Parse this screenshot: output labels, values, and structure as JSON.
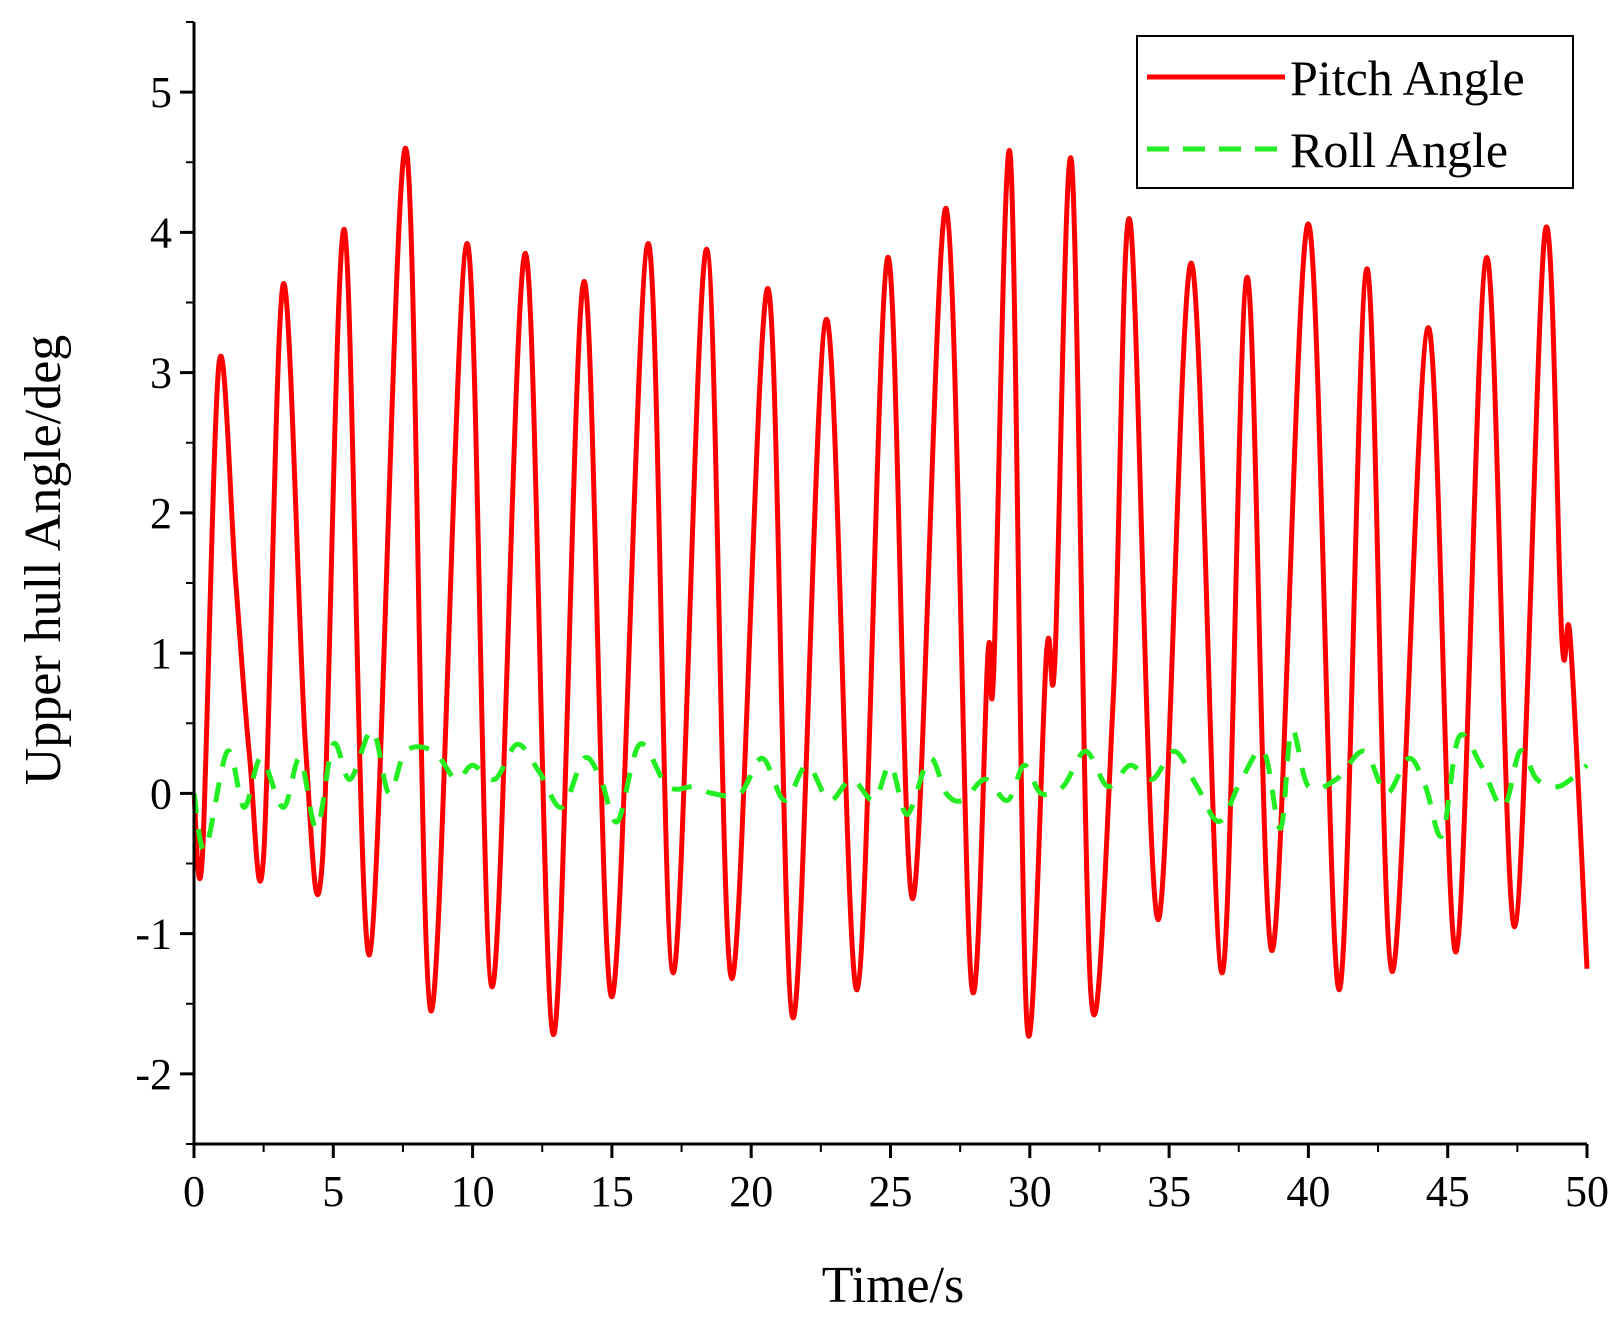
{
  "chart_data": {
    "type": "line",
    "title": "",
    "xlabel": "Time/s",
    "ylabel": "Upper hull Angle/deg",
    "xlim": [
      0,
      50
    ],
    "ylim": [
      -2.5,
      5.5
    ],
    "x_ticks": [
      0,
      5,
      10,
      15,
      20,
      25,
      30,
      35,
      40,
      45,
      50
    ],
    "x_tick_labels": [
      "0",
      "5",
      "10",
      "15",
      "20",
      "25",
      "30",
      "35",
      "40",
      "45",
      "50"
    ],
    "y_ticks": [
      -2,
      -1,
      0,
      1,
      2,
      3,
      4,
      5
    ],
    "y_tick_labels": [
      "-2",
      "-1",
      "0",
      "1",
      "2",
      "3",
      "4",
      "5"
    ],
    "legend_position": "top-right",
    "grid": false,
    "series": [
      {
        "name": "Pitch Angle",
        "color": "#ff0000",
        "style": "solid",
        "x": [
          0,
          0.3,
          0.9,
          1.5,
          2.0,
          2.5,
          3.2,
          4.0,
          4.6,
          5.4,
          6.3,
          7.6,
          8.5,
          9.8,
          10.7,
          11.9,
          12.9,
          14.0,
          15.0,
          16.3,
          17.2,
          18.4,
          19.3,
          20.6,
          21.5,
          22.7,
          23.8,
          24.9,
          25.8,
          27.0,
          27.9,
          28.5,
          28.7,
          29.3,
          29.9,
          30.6,
          30.9,
          31.5,
          32.2,
          33.0,
          33.6,
          34.6,
          35.8,
          36.9,
          37.8,
          38.7,
          40.0,
          41.1,
          42.1,
          43.0,
          44.3,
          45.3,
          46.4,
          47.4,
          48.5,
          49.1,
          49.4,
          50.0
        ],
        "y": [
          0.0,
          -0.45,
          3.07,
          1.5,
          0.25,
          -0.45,
          3.63,
          0.35,
          -0.5,
          4.02,
          -1.15,
          4.6,
          -1.55,
          3.92,
          -1.38,
          3.85,
          -1.72,
          3.65,
          -1.45,
          3.92,
          -1.28,
          3.88,
          -1.32,
          3.6,
          -1.6,
          3.38,
          -1.4,
          3.82,
          -0.75,
          4.17,
          -1.35,
          1.0,
          0.85,
          4.55,
          -1.65,
          1.0,
          0.95,
          4.5,
          -1.45,
          0.7,
          4.08,
          -0.9,
          3.78,
          -1.28,
          3.68,
          -1.12,
          4.06,
          -1.4,
          3.74,
          -1.27,
          3.32,
          -1.13,
          3.82,
          -0.95,
          4.01,
          1.1,
          1.1,
          -1.25
        ]
      },
      {
        "name": "Roll Angle",
        "color": "#22ee22",
        "style": "dashed",
        "x": [
          0,
          0.4,
          1.2,
          1.8,
          2.4,
          3.2,
          3.8,
          4.4,
          5.0,
          5.6,
          6.4,
          7.0,
          7.6,
          8.6,
          9.4,
          10.0,
          10.8,
          11.6,
          12.4,
          13.2,
          14.0,
          14.6,
          15.2,
          16.0,
          17.0,
          18.0,
          18.6,
          19.6,
          20.4,
          21.2,
          22.0,
          22.8,
          23.6,
          24.4,
          25.0,
          25.6,
          26.4,
          27.0,
          27.6,
          28.4,
          29.2,
          29.8,
          30.4,
          31.2,
          32.0,
          32.8,
          33.6,
          34.4,
          35.2,
          36.0,
          36.8,
          37.6,
          38.4,
          39.0,
          39.4,
          40.0,
          41.0,
          42.0,
          42.8,
          43.6,
          44.2,
          44.8,
          45.4,
          46.2,
          47.0,
          47.6,
          48.2,
          49.0,
          50.0
        ],
        "y": [
          0.0,
          -0.4,
          0.3,
          -0.1,
          0.25,
          -0.1,
          0.25,
          -0.25,
          0.35,
          0.1,
          0.45,
          0.0,
          0.3,
          0.3,
          0.1,
          0.2,
          0.1,
          0.35,
          0.15,
          -0.1,
          0.25,
          0.1,
          -0.2,
          0.35,
          0.05,
          0.05,
          0.0,
          0.0,
          0.25,
          -0.05,
          0.2,
          -0.05,
          0.1,
          -0.05,
          0.2,
          -0.15,
          0.25,
          0.0,
          -0.05,
          0.1,
          -0.05,
          0.2,
          0.0,
          0.05,
          0.3,
          0.05,
          0.2,
          0.1,
          0.3,
          0.05,
          -0.2,
          0.1,
          0.3,
          -0.25,
          0.45,
          0.05,
          0.1,
          0.3,
          0.0,
          0.25,
          0.05,
          -0.3,
          0.4,
          0.2,
          -0.1,
          0.3,
          0.1,
          0.05,
          0.2
        ]
      }
    ]
  }
}
